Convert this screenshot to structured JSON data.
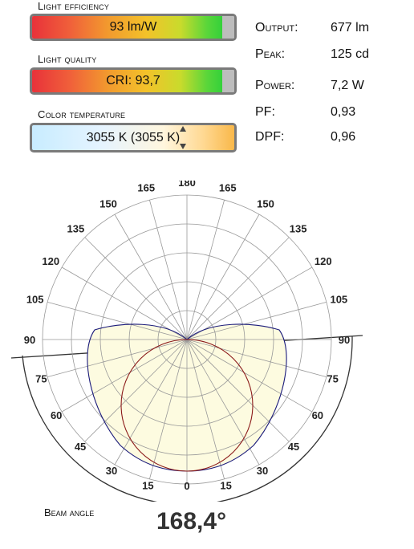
{
  "light_efficiency": {
    "label": "Light efficiency",
    "value": "93 lm/W",
    "fill_fraction": 0.94
  },
  "light_quality": {
    "label": "Light quality",
    "value": "CRI: 93,7",
    "fill_fraction": 0.94
  },
  "color_temperature": {
    "label": "Color temperature",
    "value": "3055 K (3055 K)"
  },
  "metrics": [
    {
      "key": "Output:",
      "value": "677 lm"
    },
    {
      "key": "Peak:",
      "value": "125 cd"
    },
    {
      "key": "Power:",
      "value": "7,2 W"
    },
    {
      "key": "PF:",
      "value": "0,93"
    },
    {
      "key": "DPF:",
      "value": "0,96"
    }
  ],
  "polar": {
    "upper_ticks": [
      "180",
      "165",
      "165",
      "150",
      "150",
      "135",
      "135",
      "120",
      "120",
      "105",
      "105",
      "90",
      "90"
    ],
    "lower_ticks": [
      "75",
      "75",
      "60",
      "60",
      "45",
      "45",
      "30",
      "30",
      "15",
      "15",
      "0"
    ],
    "colors": {
      "c0": "#8b1a1a",
      "c90": "#1a1a7a",
      "fill": "#fdfbe0",
      "grid": "#999999"
    }
  },
  "beam": {
    "label": "Beam angle",
    "value": "168,4°"
  }
}
